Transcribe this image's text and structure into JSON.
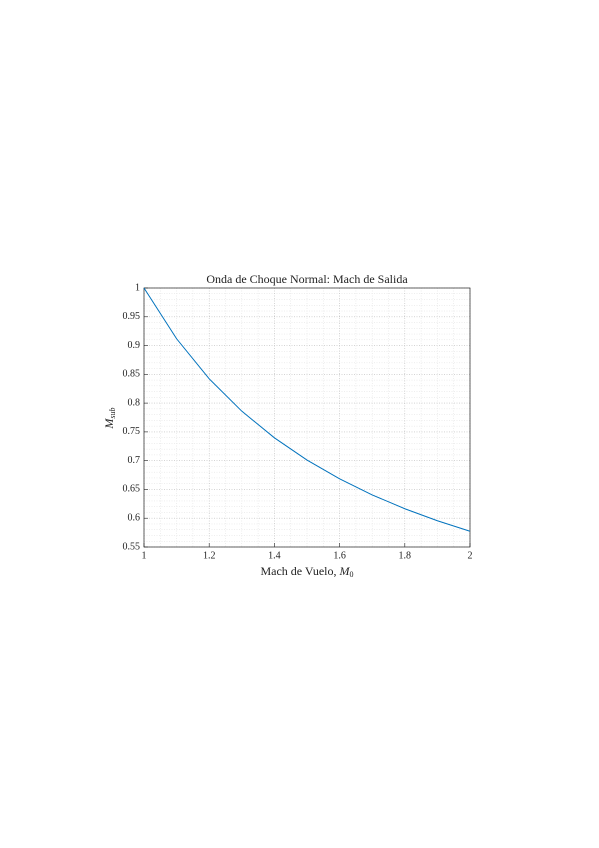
{
  "chart_data": {
    "type": "line",
    "title": "Onda de Choque Normal: Mach de Salida",
    "x_label": {
      "text": "Mach de Vuelo, ",
      "symbol": "M",
      "subscript": "0"
    },
    "y_label": {
      "symbol": "M",
      "subscript": "sub"
    },
    "x": [
      1,
      1.1,
      1.2,
      1.3,
      1.4,
      1.5,
      1.6,
      1.7,
      1.8,
      1.9,
      2
    ],
    "series": [
      {
        "color": "#0072bd",
        "values": [
          1,
          0.9118,
          0.8422,
          0.786,
          0.7397,
          0.7011,
          0.6684,
          0.6405,
          0.6165,
          0.5956,
          0.5774
        ]
      }
    ],
    "xlim": [
      1,
      2
    ],
    "xticks": [
      1,
      1.2,
      1.4,
      1.6,
      1.8,
      2
    ],
    "ylim": [
      0.55,
      1
    ],
    "yticks": [
      0.55,
      0.6,
      0.65,
      0.7,
      0.75,
      0.8,
      0.85,
      0.9,
      0.95,
      1
    ],
    "grid": true,
    "minor_grid": true
  }
}
